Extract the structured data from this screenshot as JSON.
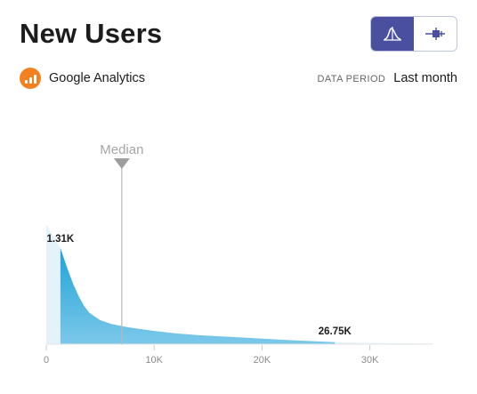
{
  "header": {
    "title": "New Users"
  },
  "view_toggle": {
    "options": [
      {
        "icon": "distribution-curve-icon",
        "active": true
      },
      {
        "icon": "box-plot-icon",
        "active": false
      }
    ],
    "active_color": "#4a4fa0"
  },
  "source": {
    "name": "Google Analytics",
    "icon": "google-analytics-icon",
    "icon_color": "#f48120"
  },
  "period": {
    "label": "DATA PERIOD",
    "value": "Last month"
  },
  "chart_data": {
    "type": "area",
    "series_color": "#1fa3d6",
    "x_ticks": [
      0,
      10000,
      20000,
      30000
    ],
    "x_tick_labels": [
      "0",
      "10K",
      "20K",
      "30K"
    ],
    "xlim": [
      0,
      35800
    ],
    "median": {
      "label": "Median",
      "x": 7000
    },
    "range_labels": [
      {
        "x": 1310,
        "text": "1.31K"
      },
      {
        "x": 26750,
        "text": "26.75K"
      }
    ],
    "curve": {
      "x": [
        0,
        1310,
        2000,
        2500,
        3000,
        3500,
        4000,
        5000,
        6000,
        7000,
        8000,
        10000,
        12000,
        14000,
        16000,
        18000,
        20000,
        22000,
        24000,
        26750,
        30000,
        35800
      ],
      "density": [
        1.0,
        0.8,
        0.62,
        0.5,
        0.4,
        0.32,
        0.26,
        0.2,
        0.17,
        0.15,
        0.135,
        0.11,
        0.09,
        0.076,
        0.066,
        0.056,
        0.046,
        0.036,
        0.028,
        0.016,
        0.01,
        0.006
      ]
    }
  }
}
